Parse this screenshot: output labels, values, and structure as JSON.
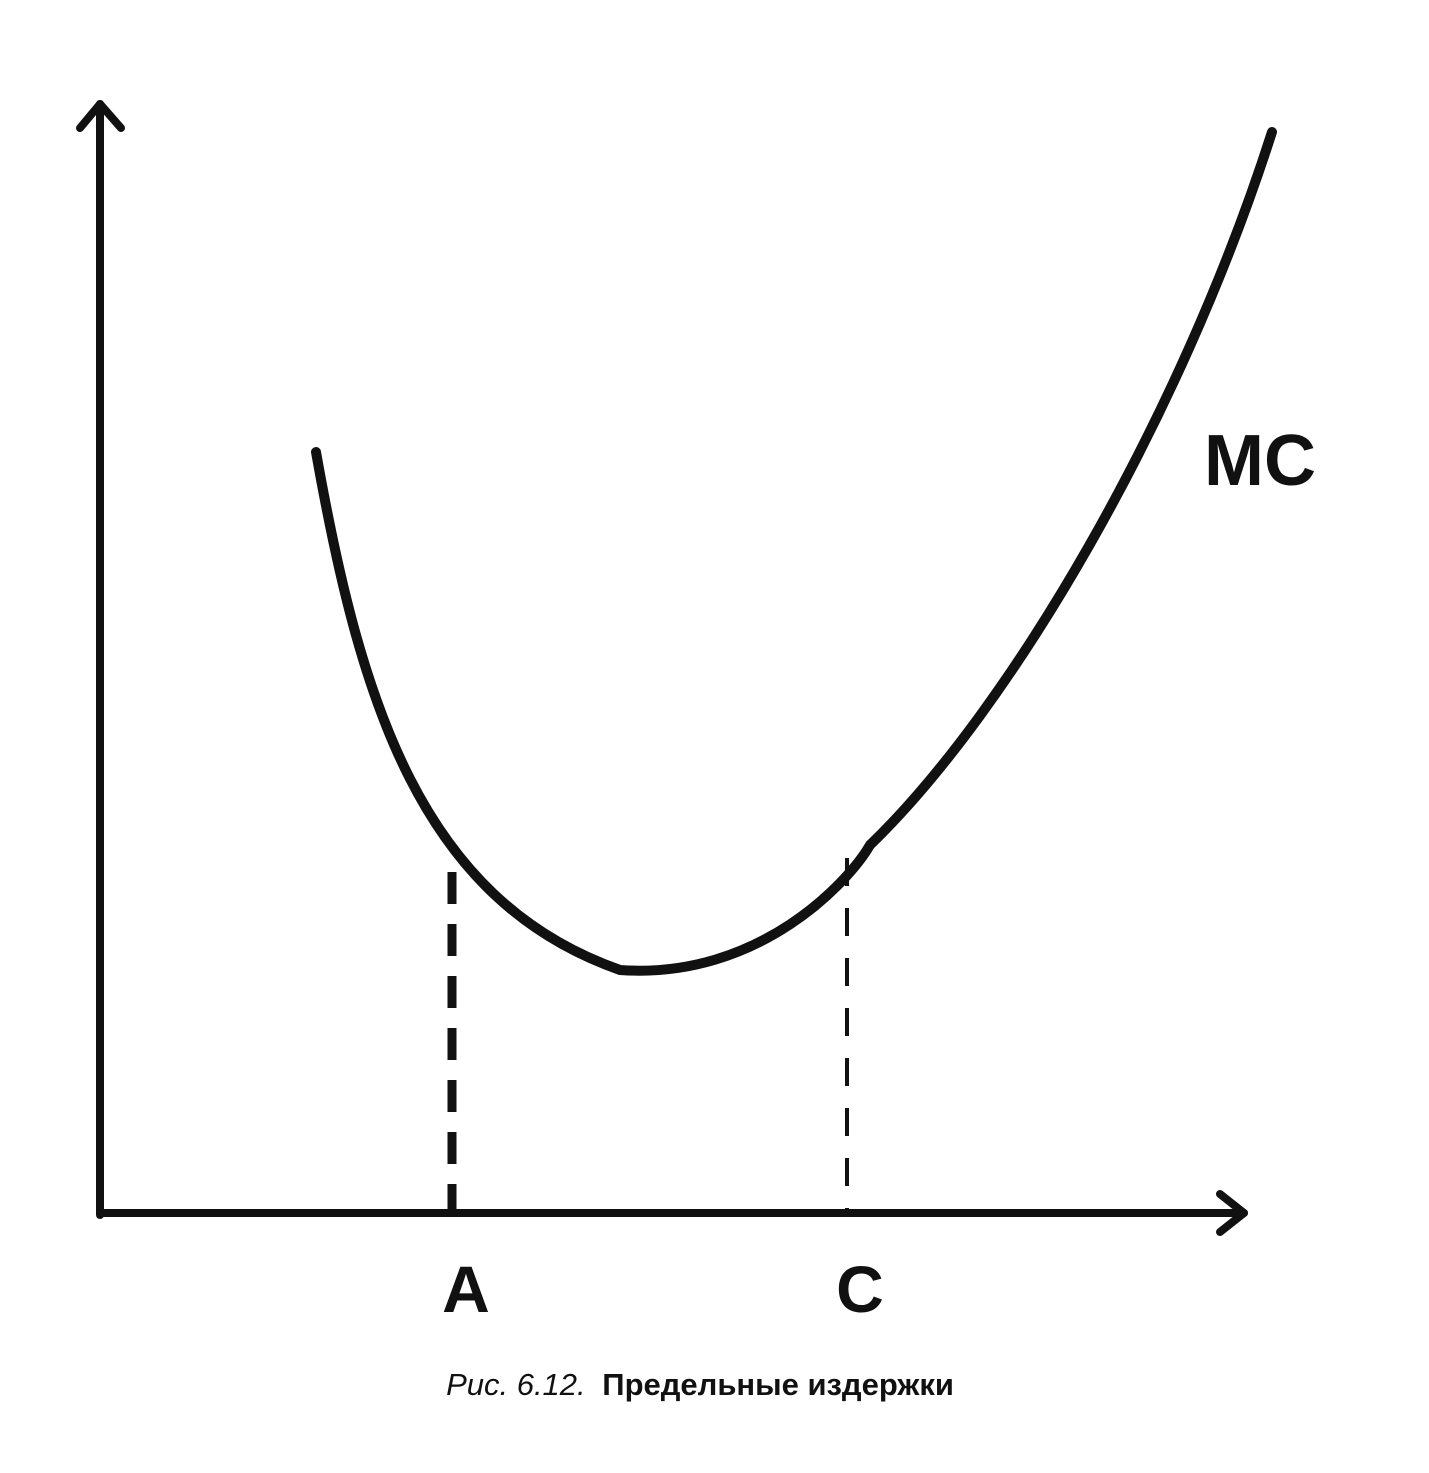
{
  "curve": {
    "label": "MC"
  },
  "x_labels": [
    "A",
    "C"
  ],
  "caption": {
    "number": "Рис. 6.12.",
    "title": "Предельные издержки"
  }
}
